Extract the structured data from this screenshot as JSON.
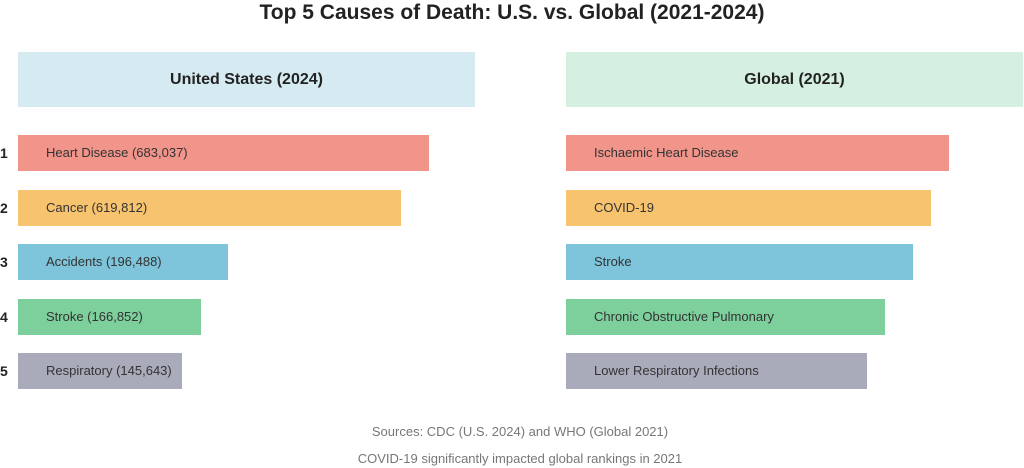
{
  "title": "Top 5 Causes of Death: U.S. vs. Global (2021-2024)",
  "ranks": [
    "1",
    "2",
    "3",
    "4",
    "5"
  ],
  "panels": [
    {
      "header": "United States (2024)",
      "items": [
        "Heart Disease (683,037)",
        "Cancer (619,812)",
        "Accidents (196,488)",
        "Stroke (166,852)",
        "Respiratory (145,643)"
      ]
    },
    {
      "header": "Global (2021)",
      "items": [
        "Ischaemic Heart Disease",
        "COVID-19",
        "Stroke",
        "Chronic Obstructive Pulmonary",
        "Lower Respiratory Infections"
      ]
    }
  ],
  "sources": "Sources: CDC (U.S. 2024) and WHO (Global 2021)",
  "note": "COVID-19 significantly impacted global rankings in 2021"
}
